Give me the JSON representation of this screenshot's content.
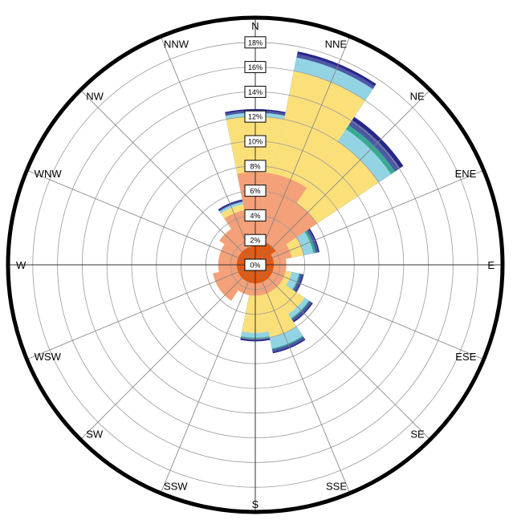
{
  "chart_data": {
    "type": "windrose",
    "directions": [
      "N",
      "NNE",
      "NE",
      "ENE",
      "E",
      "ESE",
      "SE",
      "SSE",
      "S",
      "SSW",
      "SW",
      "WSW",
      "W",
      "WNW",
      "NW",
      "NNW"
    ],
    "direction_labels": [
      "N",
      "NNE",
      "NE",
      "ENE",
      "E",
      "ESE",
      "SE",
      "SSE",
      "S",
      "SSW",
      "SW",
      "WSW",
      "W",
      "WNW",
      "NW",
      "NNW"
    ],
    "rings": [
      2,
      4,
      6,
      8,
      10,
      12,
      14,
      16,
      18
    ],
    "ring_labels": [
      "0%",
      "2%",
      "4%",
      "6%",
      "8%",
      "10%",
      "12%",
      "14%",
      "16%",
      "18%"
    ],
    "series": [
      {
        "color": "#e4570e",
        "values": [
          2.0,
          2.0,
          2.0,
          1.5,
          1.5,
          1.5,
          1.5,
          1.5,
          1.5,
          1.5,
          1.5,
          1.5,
          1.5,
          1.5,
          1.5,
          1.5
        ]
      },
      {
        "color": "#f4a078",
        "values": [
          7.5,
          7.5,
          6.0,
          3.0,
          2.5,
          2.5,
          2.5,
          2.5,
          2.5,
          2.5,
          3.5,
          3.5,
          3.0,
          3.0,
          3.5,
          4.5
        ]
      },
      {
        "color": "#fbe07a",
        "values": [
          12.0,
          16.0,
          12.0,
          4.0,
          2.0,
          3.0,
          4.8,
          6.0,
          5.5,
          2.0,
          1.5,
          1.5,
          1.5,
          2.0,
          2.5,
          5.0
        ]
      },
      {
        "color": "#93d4e4",
        "values": [
          12.3,
          17.1,
          13.2,
          4.8,
          2.3,
          3.6,
          5.2,
          6.9,
          5.9,
          2.1,
          1.6,
          1.6,
          1.6,
          2.1,
          2.6,
          5.2
        ]
      },
      {
        "color": "#3aa993",
        "values": [
          12.3,
          17.1,
          13.6,
          5.0,
          2.3,
          3.7,
          5.3,
          7.0,
          6.0,
          2.1,
          1.6,
          1.6,
          1.6,
          2.1,
          2.6,
          5.2
        ]
      },
      {
        "color": "#4f57a6",
        "values": [
          12.5,
          17.4,
          14.1,
          5.2,
          2.4,
          3.9,
          5.5,
          7.2,
          6.1,
          2.2,
          1.7,
          1.7,
          1.7,
          2.2,
          2.7,
          5.3
        ]
      },
      {
        "color": "#26288a",
        "values": [
          12.6,
          17.6,
          14.4,
          5.3,
          2.5,
          4.0,
          5.6,
          7.3,
          6.2,
          2.3,
          1.8,
          1.8,
          1.8,
          2.3,
          2.8,
          5.4
        ]
      }
    ]
  }
}
